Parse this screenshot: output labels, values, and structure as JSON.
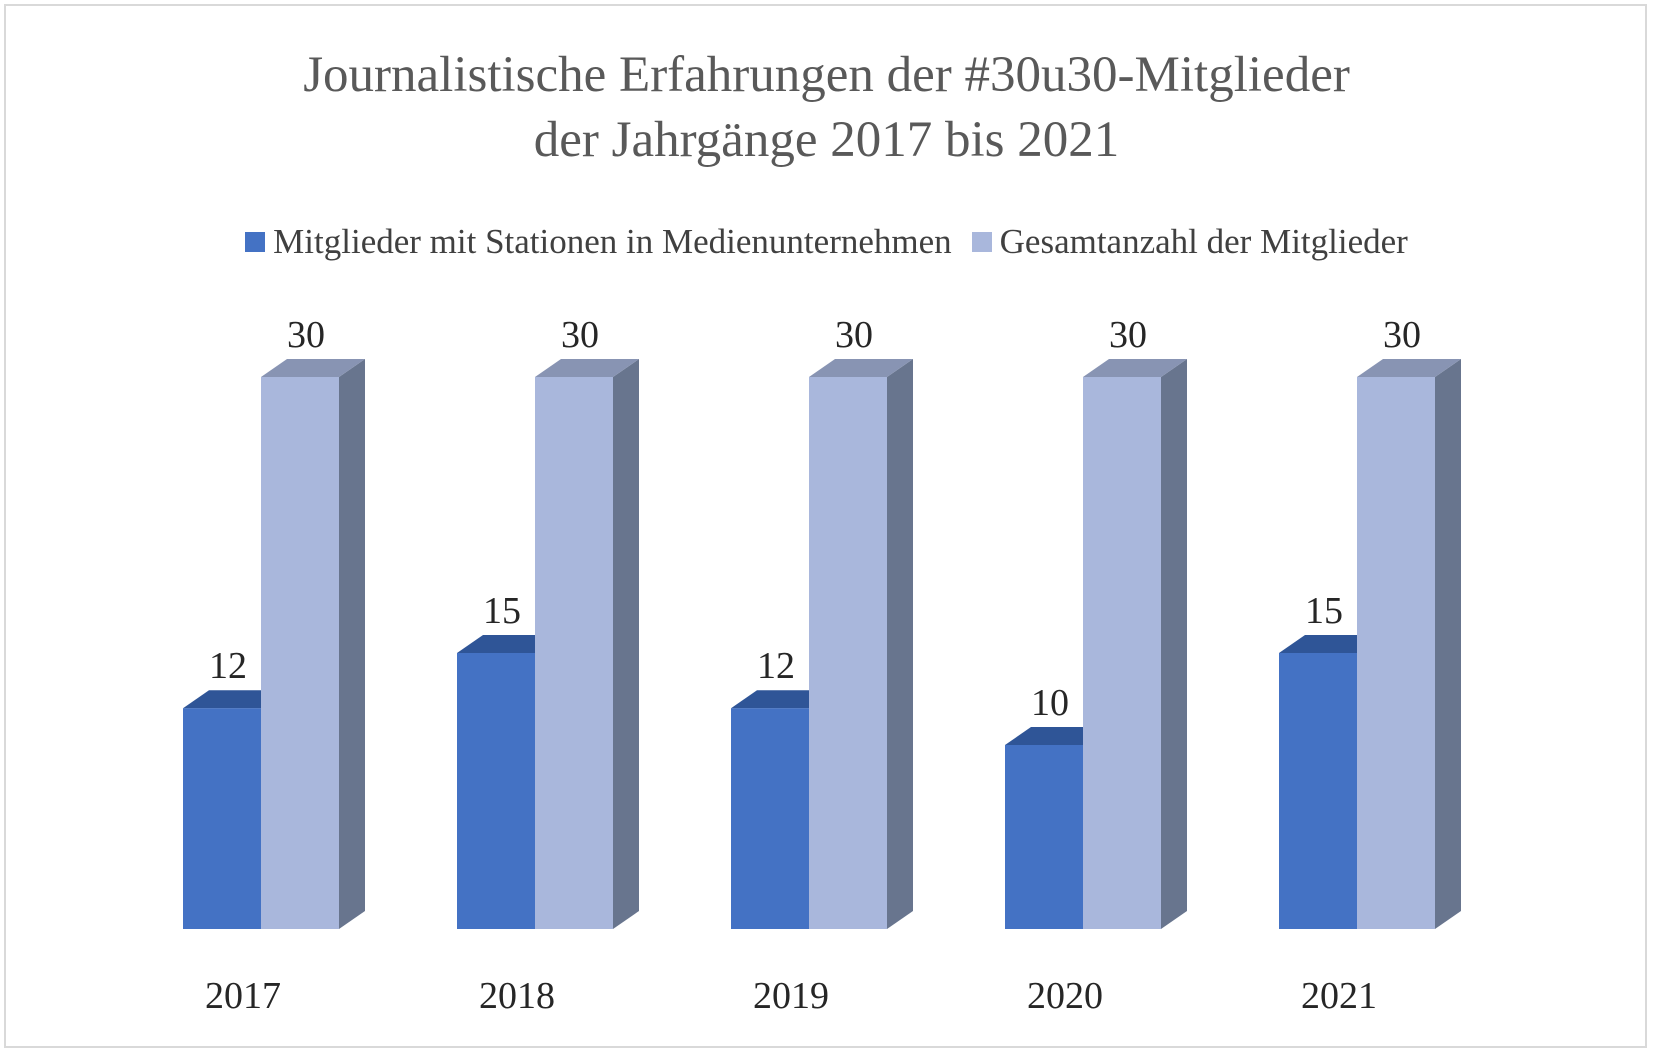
{
  "chart_data": {
    "type": "bar",
    "title_line1": "Journalistische Erfahrungen der #30u30-Mitglieder",
    "title_line2": "der Jahrgänge 2017 bis 2021",
    "categories": [
      "2017",
      "2018",
      "2019",
      "2020",
      "2021"
    ],
    "series": [
      {
        "name": "Mitglieder mit Stationen in Medienunternehmen",
        "values": [
          12,
          15,
          12,
          10,
          15
        ],
        "color": "#4472c4",
        "top_color": "#2f5597",
        "side_color": "#2f528f"
      },
      {
        "name": "Gesamtanzahl der Mitglieder",
        "values": [
          30,
          30,
          30,
          30,
          30
        ],
        "color": "#a9b7dc",
        "top_color": "#8894b3",
        "side_color": "#68758e"
      }
    ],
    "ylim": [
      0,
      30
    ],
    "legend": "top",
    "grid": false,
    "style": "3d-clustered-column"
  }
}
